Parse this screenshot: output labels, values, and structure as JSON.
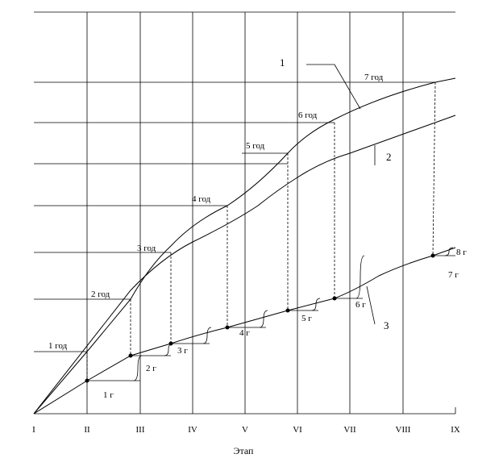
{
  "curve_labels": [
    "1",
    "2",
    "3"
  ],
  "stages": [
    "I",
    "II",
    "III",
    "IV",
    "V",
    "VI",
    "VII",
    "VIII",
    "IX"
  ],
  "years": [
    "1 год",
    "2 год",
    "3 год",
    "4 год",
    "5 год",
    "6 год",
    "7 год"
  ],
  "steps": [
    "1 г",
    "2 г",
    "3 г",
    "4 г",
    "5 г",
    "6 г",
    "7 г",
    "8 г"
  ],
  "x_axis_label": "Этап"
}
